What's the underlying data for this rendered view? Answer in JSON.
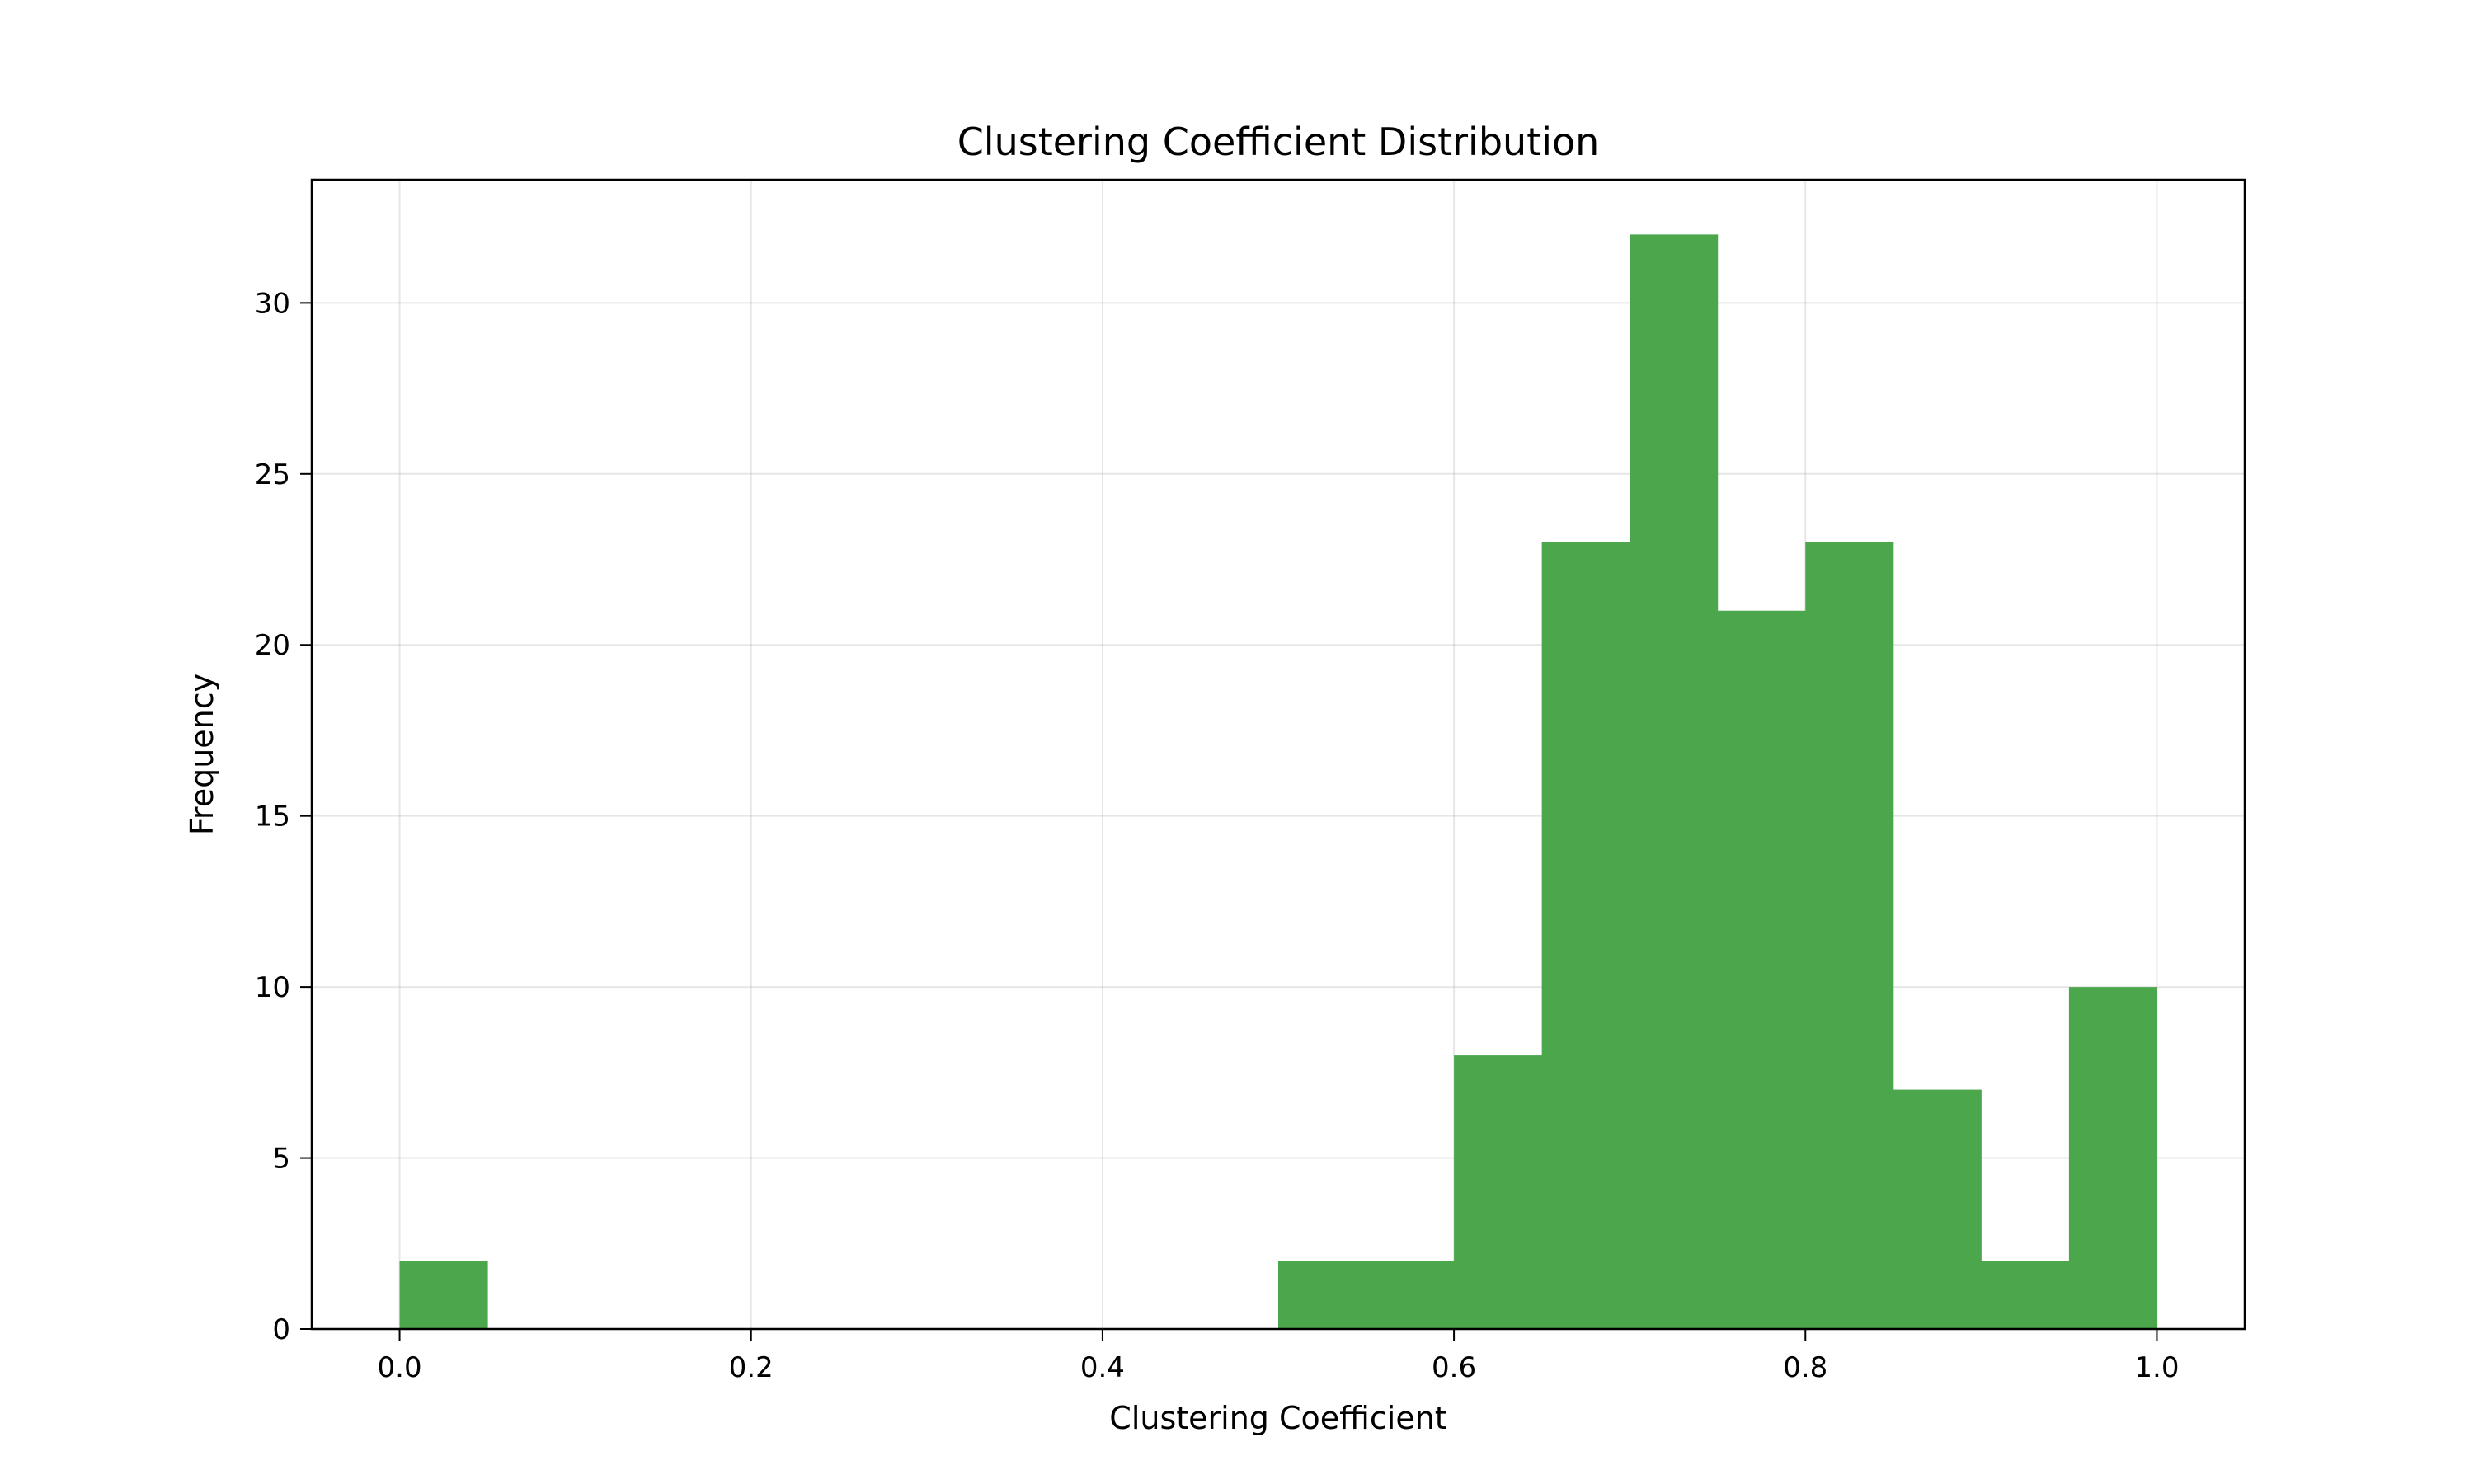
{
  "chart_data": {
    "type": "bar",
    "title": "Clustering Coefficient Distribution",
    "xlabel": "Clustering Coefficient",
    "ylabel": "Frequency",
    "xlim": [
      -0.05,
      1.05
    ],
    "ylim": [
      0,
      33.6
    ],
    "xticks": [
      "0.0",
      "0.2",
      "0.4",
      "0.6",
      "0.8",
      "1.0"
    ],
    "yticks": [
      "0",
      "5",
      "10",
      "15",
      "20",
      "25",
      "30"
    ],
    "grid": true,
    "bar_color": "#4ca64c",
    "bin_edges": [
      0.0,
      0.05,
      0.1,
      0.15,
      0.2,
      0.25,
      0.3,
      0.35,
      0.4,
      0.45,
      0.5,
      0.55,
      0.6,
      0.65,
      0.7,
      0.75,
      0.8,
      0.85,
      0.9,
      0.95,
      1.0
    ],
    "values": [
      2,
      0,
      0,
      0,
      0,
      0,
      0,
      0,
      0,
      0,
      2,
      2,
      8,
      23,
      32,
      21,
      23,
      7,
      2,
      10
    ]
  }
}
